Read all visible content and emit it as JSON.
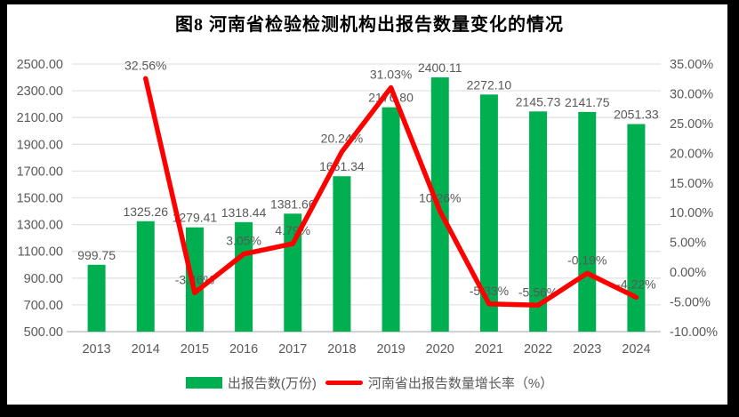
{
  "title": "图8  河南省检验检测机构出报告数量变化的情况",
  "legend": {
    "bars": "出报告数(万份)",
    "line": "河南省出报告数量增长率（%）"
  },
  "colors": {
    "bar": "#00B050",
    "line": "#FF0000",
    "grid": "#E3E3E3",
    "axis_line": "#D2D2D2",
    "text": "#595959",
    "title_text": "#000000"
  },
  "chart_data": {
    "type": "bar",
    "subtype": "combo-bar-line-dual-axis",
    "title": "图8  河南省检验检测机构出报告数量变化的情况",
    "categories": [
      "2013",
      "2014",
      "2015",
      "2016",
      "2017",
      "2018",
      "2019",
      "2020",
      "2021",
      "2022",
      "2023",
      "2024"
    ],
    "series": [
      {
        "name": "出报告数(万份)",
        "type": "bar",
        "axis": "left",
        "values": [
          999.75,
          1325.26,
          1279.41,
          1318.44,
          1381.66,
          1661.34,
          2176.8,
          2400.11,
          2272.1,
          2145.73,
          2141.75,
          2051.33
        ],
        "labels": [
          "999.75",
          "1325.26",
          "1279.41",
          "1318.44",
          "1381.66",
          "1661.34",
          "2176.80",
          "2400.11",
          "2272.10",
          "2145.73",
          "2141.75",
          "2051.33"
        ]
      },
      {
        "name": "河南省出报告数量增长率（%）",
        "type": "line",
        "axis": "right",
        "start_index": 1,
        "values": [
          32.56,
          -3.46,
          3.05,
          4.79,
          20.24,
          31.03,
          10.26,
          -5.33,
          -5.56,
          -0.19,
          -4.22
        ],
        "labels": [
          "32.56%",
          "-3.46%",
          "3.05%",
          "4.79%",
          "20.24%",
          "31.03%",
          "10.26%",
          "-5.33%",
          "-5.56%",
          "-0.19%",
          "-4.22%"
        ]
      }
    ],
    "left_axis": {
      "min": 500,
      "max": 2500,
      "step": 200,
      "tick_labels": [
        "2500.00",
        "2300.00",
        "2100.00",
        "1900.00",
        "1700.00",
        "1500.00",
        "1300.00",
        "1100.00",
        "900.00",
        "700.00",
        "500.00"
      ]
    },
    "right_axis": {
      "min": -10,
      "max": 35,
      "step": 5,
      "tick_labels": [
        "35.00%",
        "30.00%",
        "25.00%",
        "20.00%",
        "15.00%",
        "10.00%",
        "5.00%",
        "0.00%",
        "-5.00%",
        "-10.00%"
      ]
    },
    "grid": true,
    "legend_position": "bottom"
  }
}
